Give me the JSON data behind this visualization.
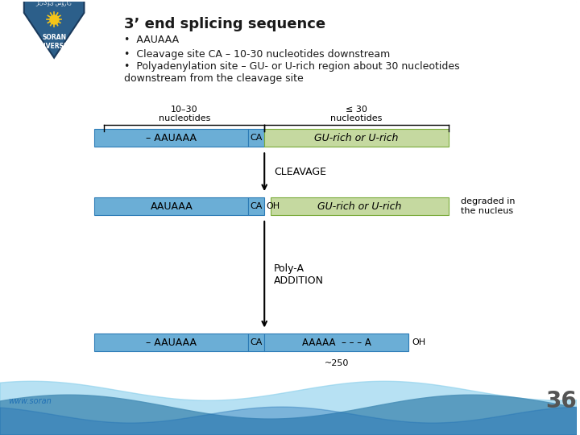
{
  "title": "3’ end splicing sequence",
  "bullets": [
    "AAUAAA",
    "Cleavage site CA – 10-30 nucleotides downstream",
    "Polyadenylation site – GU- or U-rich region about 30 nucleotides\ndownstream from the cleavage site"
  ],
  "bg_color": "#ffffff",
  "blue_color": "#6baed6",
  "green_color": "#c5d9a0",
  "label_10_30": "10–30\nnucleotides",
  "label_le30": "≤ 30\nnucleotides",
  "row1_left_text": "– AAUAAA",
  "row1_ca_text": "CA",
  "row1_right_text": "GU-rich or U-rich",
  "cleavage_label": "CLEAVAGE",
  "row2_left_text": "AAUAAA",
  "row2_ca_text": "CA",
  "row2_oh_text": "OH",
  "row2_right_text": "GU-rich or U-rich",
  "degraded_text": "degraded in\nthe nucleus",
  "polya_label": "Poly-A\nADDITION",
  "row3_left_text": "– AAUAAA",
  "row3_ca_text": "CA",
  "row3_mid_text": "AAAAA  – – – A",
  "row3_oh_text": "OH",
  "approx250": "~250",
  "page_number": "36",
  "www_text": "www.soran"
}
